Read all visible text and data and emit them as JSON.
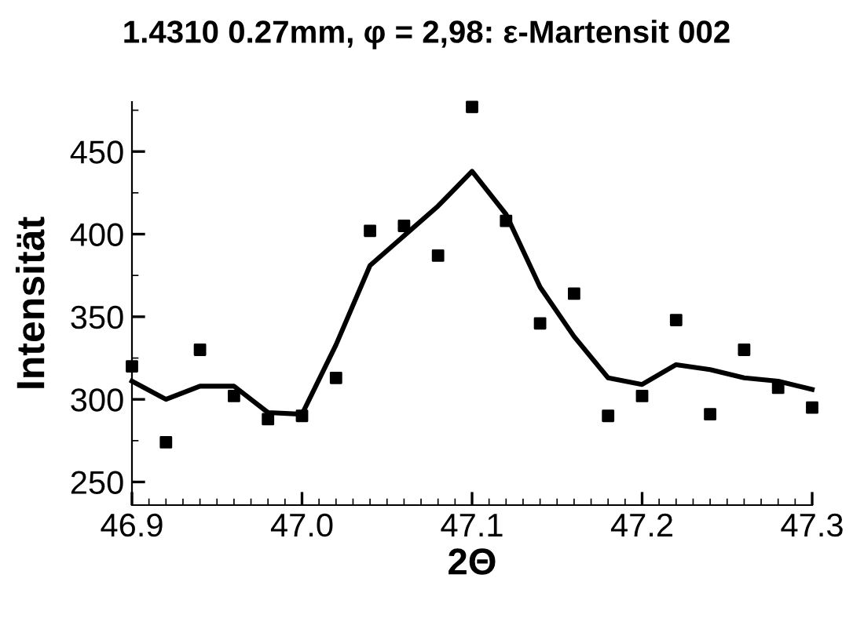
{
  "chart_data": {
    "type": "scatter",
    "title": "1.4310 0.27mm, φ = 2,98: ε-Martensit 002",
    "xlabel": "2Θ",
    "ylabel": "Intensität",
    "x": [
      46.9,
      46.92,
      46.94,
      46.96,
      46.98,
      47.0,
      47.02,
      47.04,
      47.06,
      47.08,
      47.1,
      47.12,
      47.14,
      47.16,
      47.18,
      47.2,
      47.22,
      47.24,
      47.26,
      47.28,
      47.3
    ],
    "series": [
      {
        "color": "#000000",
        "marker": "square",
        "values": [
          320,
          274,
          330,
          302,
          288,
          290,
          313,
          402,
          405,
          387,
          477,
          408,
          346,
          364,
          290,
          302,
          348,
          291,
          330,
          307,
          295
        ]
      },
      {
        "type": "line",
        "color": "#000000",
        "marker": "none",
        "line_style": "solid",
        "values": [
          311,
          300,
          308,
          308,
          292,
          291,
          333,
          381,
          399,
          417,
          438,
          412,
          368,
          338,
          313,
          309,
          321,
          318,
          313,
          311,
          306
        ]
      }
    ],
    "xlim": [
      46.9,
      47.3
    ],
    "xticks": [
      {
        "value": 46.9,
        "label": "46.9"
      },
      {
        "value": 47.0,
        "label": "47.0"
      },
      {
        "value": 47.1,
        "label": "47.1"
      },
      {
        "value": 47.2,
        "label": "47.2"
      },
      {
        "value": 47.3,
        "label": "47.3"
      }
    ],
    "ylim": [
      236,
      480
    ],
    "yticks": [
      250,
      300,
      350,
      400,
      450
    ],
    "grid": false,
    "legend": false
  }
}
